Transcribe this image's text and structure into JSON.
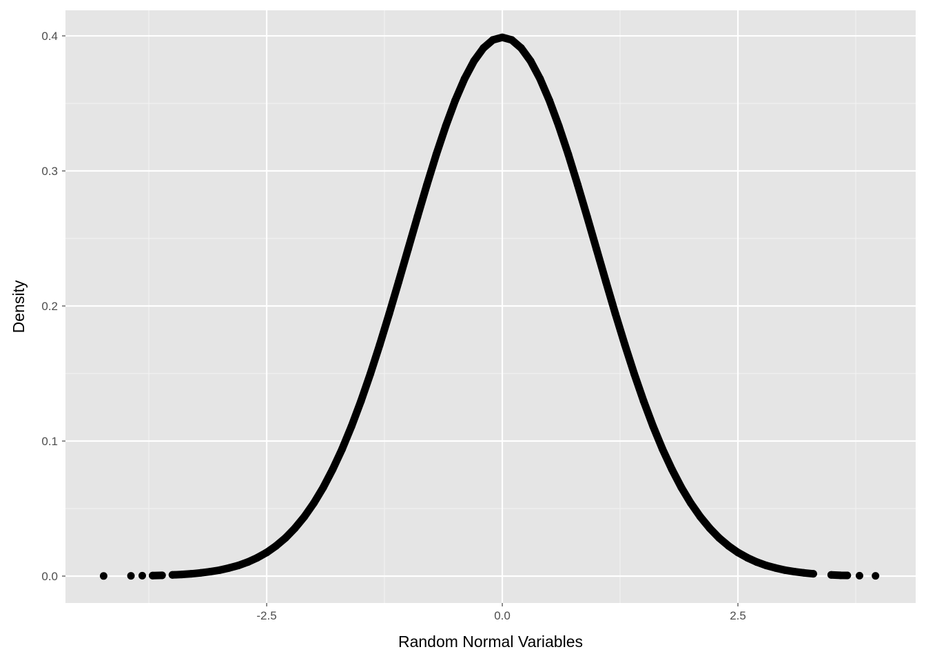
{
  "chart_data": {
    "type": "scatter",
    "title": "",
    "xlabel": "Random Normal Variables",
    "ylabel": "Density",
    "xlim": [
      -4.635,
      4.386
    ],
    "ylim": [
      -0.0199,
      0.4189
    ],
    "x_ticks": [
      -2.5,
      0.0,
      2.5
    ],
    "x_tick_labels": [
      "-2.5",
      "0.0",
      "2.5"
    ],
    "x_minor": [
      -3.75,
      -1.25,
      1.25,
      3.75
    ],
    "y_ticks": [
      0,
      0.1,
      0.2,
      0.3,
      0.4
    ],
    "y_tick_labels": [
      "0.0",
      "0.1",
      "0.2",
      "0.3",
      "0.4"
    ],
    "y_minor": [
      0.05,
      0.15,
      0.25,
      0.35
    ],
    "grid": true,
    "panel_color": "#e5e5e5",
    "point_color": "#000000",
    "points": [
      [
        -4.23,
        0.0001
      ],
      [
        -3.94,
        0.0002
      ],
      [
        -3.82,
        0.0003
      ],
      [
        -3.71,
        0.0004
      ],
      [
        -3.61,
        0.0006
      ],
      [
        -3.5,
        0.0009
      ],
      [
        -3.4,
        0.0012
      ],
      [
        -3.3,
        0.0017
      ],
      [
        -3.2,
        0.0024
      ],
      [
        -3.1,
        0.0033
      ],
      [
        -3.0,
        0.0044
      ],
      [
        -2.9,
        0.006
      ],
      [
        -2.8,
        0.0079
      ],
      [
        -2.7,
        0.0104
      ],
      [
        -2.6,
        0.0136
      ],
      [
        -2.5,
        0.0175
      ],
      [
        -2.4,
        0.0224
      ],
      [
        -2.3,
        0.0283
      ],
      [
        -2.2,
        0.0355
      ],
      [
        -2.1,
        0.044
      ],
      [
        -2.0,
        0.054
      ],
      [
        -1.9,
        0.0656
      ],
      [
        -1.8,
        0.079
      ],
      [
        -1.7,
        0.094
      ],
      [
        -1.6,
        0.1109
      ],
      [
        -1.5,
        0.1295
      ],
      [
        -1.4,
        0.1497
      ],
      [
        -1.3,
        0.1714
      ],
      [
        -1.2,
        0.1942
      ],
      [
        -1.1,
        0.2179
      ],
      [
        -1.0,
        0.242
      ],
      [
        -0.9,
        0.2661
      ],
      [
        -0.8,
        0.2897
      ],
      [
        -0.7,
        0.3123
      ],
      [
        -0.6,
        0.3332
      ],
      [
        -0.5,
        0.3521
      ],
      [
        -0.4,
        0.3683
      ],
      [
        -0.3,
        0.3814
      ],
      [
        -0.2,
        0.391
      ],
      [
        -0.1,
        0.397
      ],
      [
        0.0,
        0.3989
      ],
      [
        0.1,
        0.397
      ],
      [
        0.2,
        0.391
      ],
      [
        0.3,
        0.3814
      ],
      [
        0.4,
        0.3683
      ],
      [
        0.5,
        0.3521
      ],
      [
        0.6,
        0.3332
      ],
      [
        0.7,
        0.3123
      ],
      [
        0.8,
        0.2897
      ],
      [
        0.9,
        0.2661
      ],
      [
        1.0,
        0.242
      ],
      [
        1.1,
        0.2179
      ],
      [
        1.2,
        0.1942
      ],
      [
        1.3,
        0.1714
      ],
      [
        1.4,
        0.1497
      ],
      [
        1.5,
        0.1295
      ],
      [
        1.6,
        0.1109
      ],
      [
        1.7,
        0.094
      ],
      [
        1.8,
        0.079
      ],
      [
        1.9,
        0.0656
      ],
      [
        2.0,
        0.054
      ],
      [
        2.1,
        0.044
      ],
      [
        2.2,
        0.0355
      ],
      [
        2.3,
        0.0283
      ],
      [
        2.4,
        0.0224
      ],
      [
        2.5,
        0.0175
      ],
      [
        2.6,
        0.0136
      ],
      [
        2.7,
        0.0104
      ],
      [
        2.8,
        0.0079
      ],
      [
        2.9,
        0.006
      ],
      [
        3.0,
        0.0044
      ],
      [
        3.1,
        0.0033
      ],
      [
        3.2,
        0.0024
      ],
      [
        3.3,
        0.0017
      ],
      [
        3.49,
        0.0009
      ],
      [
        3.59,
        0.0006
      ],
      [
        3.66,
        0.0005
      ],
      [
        3.79,
        0.0003
      ],
      [
        3.96,
        0.0002
      ]
    ]
  }
}
